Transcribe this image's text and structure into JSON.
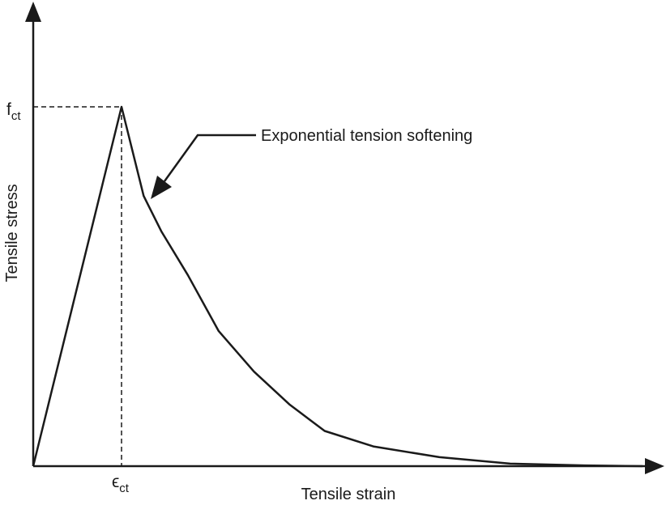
{
  "chart_data": {
    "type": "line",
    "title": "",
    "xlabel": "Tensile strain",
    "ylabel": "Tensile stress",
    "grid": false,
    "legend": "none",
    "peak_labels": {
      "y_main": "f",
      "y_sub": "ct",
      "x_main": "ϵ",
      "x_sub": "ct"
    },
    "annotation": "Exponential tension softening",
    "xlim": [
      0,
      7.2
    ],
    "ylim": [
      0,
      1.0
    ],
    "peak": {
      "x": 1.0,
      "y": 1.0
    },
    "series": [
      {
        "x": [
          0,
          1.0,
          1.25,
          1.45,
          1.75,
          2.1,
          2.5,
          2.9,
          3.3,
          3.85,
          4.6,
          5.4,
          6.25,
          6.9
        ],
        "y": [
          0,
          1.0,
          0.752,
          0.654,
          0.532,
          0.376,
          0.263,
          0.172,
          0.098,
          0.055,
          0.025,
          0.007,
          0.002,
          0.0
        ]
      }
    ],
    "colors": {
      "line": "#1a1a1a",
      "text": "#1a1a1a"
    }
  }
}
